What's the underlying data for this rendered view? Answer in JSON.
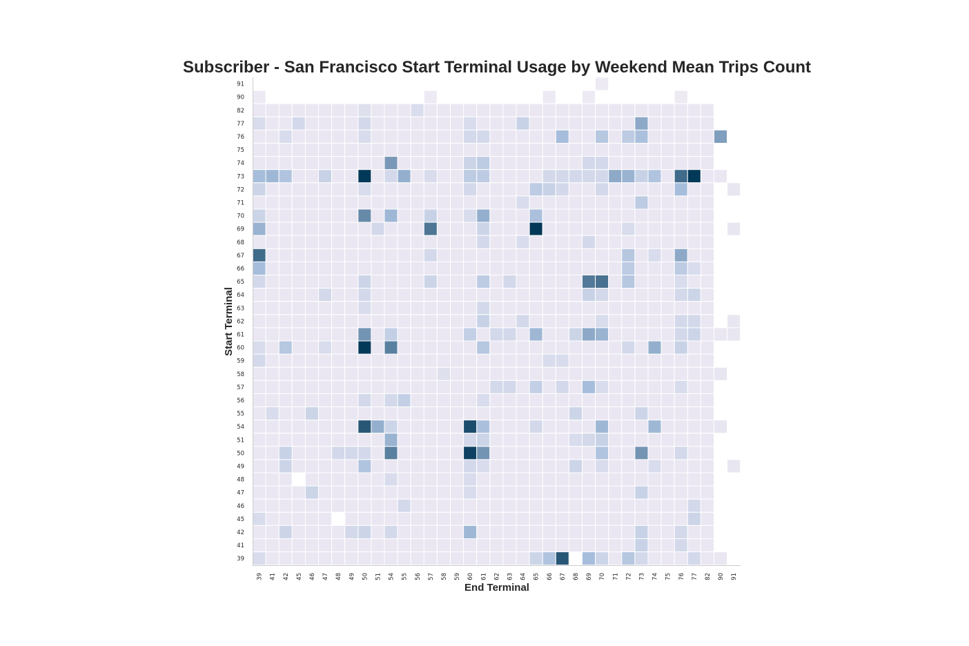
{
  "chart_data": {
    "type": "heatmap",
    "title": "Subscriber - San Francisco Start Terminal Usage by Weekend Mean Trips Count",
    "xlabel": "End Terminal",
    "ylabel": "Start Terminal",
    "x_categories": [
      "39",
      "41",
      "42",
      "45",
      "46",
      "47",
      "48",
      "49",
      "50",
      "51",
      "54",
      "55",
      "56",
      "57",
      "58",
      "59",
      "60",
      "61",
      "62",
      "63",
      "64",
      "65",
      "66",
      "67",
      "68",
      "69",
      "70",
      "71",
      "72",
      "73",
      "74",
      "75",
      "76",
      "77",
      "82",
      "90",
      "91"
    ],
    "y_categories": [
      "91",
      "90",
      "82",
      "77",
      "76",
      "75",
      "74",
      "73",
      "72",
      "71",
      "70",
      "69",
      "68",
      "67",
      "66",
      "65",
      "64",
      "63",
      "62",
      "61",
      "60",
      "59",
      "58",
      "57",
      "56",
      "55",
      "54",
      "51",
      "50",
      "49",
      "48",
      "47",
      "46",
      "45",
      "42",
      "41",
      "39"
    ],
    "colormap": {
      "low": "#f5eef6",
      "mid": "#a6bddb",
      "high": "#023858"
    },
    "value_range": [
      0,
      10
    ],
    "default_value": 0.5,
    "cells": [
      [
        "91",
        "70",
        0.3
      ],
      [
        "90",
        "39",
        0.3
      ],
      [
        "90",
        "57",
        0.3
      ],
      [
        "90",
        "66",
        0.3
      ],
      [
        "90",
        "69",
        0.3
      ],
      [
        "90",
        "76",
        0.3
      ],
      [
        "82",
        "56",
        1.2
      ],
      [
        "82",
        "50",
        1.0
      ],
      [
        "77",
        "39",
        1.3
      ],
      [
        "77",
        "45",
        1.5
      ],
      [
        "77",
        "50",
        1.5
      ],
      [
        "77",
        "60",
        1.3
      ],
      [
        "77",
        "64",
        2.0
      ],
      [
        "77",
        "73",
        4.5
      ],
      [
        "76",
        "42",
        1.3
      ],
      [
        "76",
        "50",
        1.3
      ],
      [
        "76",
        "60",
        1.5
      ],
      [
        "76",
        "61",
        1.5
      ],
      [
        "76",
        "67",
        3.5
      ],
      [
        "76",
        "70",
        2.8
      ],
      [
        "76",
        "72",
        2.5
      ],
      [
        "76",
        "73",
        3.3
      ],
      [
        "76",
        "90",
        5.0
      ],
      [
        "74",
        "54",
        5.3
      ],
      [
        "74",
        "60",
        1.8
      ],
      [
        "74",
        "61",
        2.5
      ],
      [
        "74",
        "69",
        1.5
      ],
      [
        "74",
        "70",
        1.5
      ],
      [
        "73",
        "39",
        3.5
      ],
      [
        "73",
        "41",
        3.8
      ],
      [
        "73",
        "42",
        3.0
      ],
      [
        "73",
        "47",
        2.0
      ],
      [
        "73",
        "50",
        10.0
      ],
      [
        "73",
        "55",
        4.2
      ],
      [
        "73",
        "60",
        2.5
      ],
      [
        "73",
        "61",
        2.5
      ],
      [
        "73",
        "71",
        4.5
      ],
      [
        "73",
        "72",
        4.0
      ],
      [
        "73",
        "74",
        3.0
      ],
      [
        "73",
        "76",
        7.5
      ],
      [
        "73",
        "77",
        10.0
      ],
      [
        "73",
        "73",
        2.0
      ],
      [
        "73",
        "66",
        1.5
      ],
      [
        "73",
        "67",
        1.5
      ],
      [
        "73",
        "68",
        1.5
      ],
      [
        "73",
        "69",
        1.5
      ],
      [
        "73",
        "70",
        1.5
      ],
      [
        "73",
        "57",
        1.3
      ],
      [
        "73",
        "54",
        1.5
      ],
      [
        "72",
        "39",
        1.8
      ],
      [
        "72",
        "50",
        1.3
      ],
      [
        "72",
        "60",
        1.5
      ],
      [
        "72",
        "65",
        2.5
      ],
      [
        "72",
        "66",
        2.0
      ],
      [
        "72",
        "67",
        1.5
      ],
      [
        "72",
        "70",
        1.5
      ],
      [
        "72",
        "76",
        3.5
      ],
      [
        "72",
        "91",
        0.6
      ],
      [
        "71",
        "73",
        2.5
      ],
      [
        "71",
        "64",
        1.3
      ],
      [
        "70",
        "39",
        1.8
      ],
      [
        "70",
        "50",
        6.0
      ],
      [
        "70",
        "54",
        3.8
      ],
      [
        "70",
        "57",
        2.0
      ],
      [
        "70",
        "61",
        4.2
      ],
      [
        "70",
        "65",
        3.3
      ],
      [
        "70",
        "60",
        1.3
      ],
      [
        "69",
        "39",
        4.0
      ],
      [
        "69",
        "51",
        1.5
      ],
      [
        "69",
        "57",
        7.0
      ],
      [
        "69",
        "65",
        10.0
      ],
      [
        "69",
        "61",
        1.8
      ],
      [
        "69",
        "72",
        1.3
      ],
      [
        "69",
        "91",
        0.6
      ],
      [
        "68",
        "61",
        1.5
      ],
      [
        "68",
        "64",
        1.3
      ],
      [
        "68",
        "69",
        1.5
      ],
      [
        "67",
        "39",
        7.5
      ],
      [
        "67",
        "57",
        1.5
      ],
      [
        "67",
        "72",
        2.8
      ],
      [
        "67",
        "76",
        4.5
      ],
      [
        "67",
        "74",
        1.3
      ],
      [
        "66",
        "39",
        3.5
      ],
      [
        "66",
        "72",
        2.5
      ],
      [
        "66",
        "76",
        2.5
      ],
      [
        "66",
        "77",
        1.3
      ],
      [
        "65",
        "39",
        1.5
      ],
      [
        "65",
        "50",
        1.8
      ],
      [
        "65",
        "57",
        1.8
      ],
      [
        "65",
        "61",
        2.5
      ],
      [
        "65",
        "63",
        1.5
      ],
      [
        "65",
        "69",
        6.8
      ],
      [
        "65",
        "70",
        7.2
      ],
      [
        "65",
        "72",
        2.8
      ],
      [
        "65",
        "76",
        1.3
      ],
      [
        "64",
        "47",
        1.5
      ],
      [
        "64",
        "50",
        1.5
      ],
      [
        "64",
        "69",
        2.0
      ],
      [
        "64",
        "70",
        1.5
      ],
      [
        "64",
        "77",
        1.8
      ],
      [
        "64",
        "76",
        1.5
      ],
      [
        "63",
        "61",
        1.5
      ],
      [
        "63",
        "50",
        1.3
      ],
      [
        "62",
        "61",
        2.0
      ],
      [
        "62",
        "64",
        1.5
      ],
      [
        "62",
        "70",
        1.3
      ],
      [
        "62",
        "76",
        1.5
      ],
      [
        "62",
        "77",
        1.5
      ],
      [
        "62",
        "91",
        0.6
      ],
      [
        "61",
        "50",
        5.5
      ],
      [
        "61",
        "54",
        2.2
      ],
      [
        "61",
        "60",
        2.2
      ],
      [
        "61",
        "62",
        1.5
      ],
      [
        "61",
        "63",
        1.5
      ],
      [
        "61",
        "65",
        3.8
      ],
      [
        "61",
        "68",
        1.8
      ],
      [
        "61",
        "69",
        4.5
      ],
      [
        "61",
        "70",
        4.0
      ],
      [
        "61",
        "76",
        1.5
      ],
      [
        "61",
        "77",
        1.8
      ],
      [
        "61",
        "91",
        0.6
      ],
      [
        "60",
        "42",
        2.8
      ],
      [
        "60",
        "50",
        10.0
      ],
      [
        "60",
        "54",
        6.5
      ],
      [
        "60",
        "61",
        2.8
      ],
      [
        "60",
        "74",
        4.2
      ],
      [
        "60",
        "76",
        2.0
      ],
      [
        "60",
        "72",
        1.5
      ],
      [
        "60",
        "39",
        1.3
      ],
      [
        "60",
        "47",
        1.3
      ],
      [
        "59",
        "39",
        1.5
      ],
      [
        "59",
        "66",
        1.3
      ],
      [
        "59",
        "67",
        1.3
      ],
      [
        "58",
        "58",
        1.0
      ],
      [
        "58",
        "90",
        0.6
      ],
      [
        "57",
        "62",
        1.5
      ],
      [
        "57",
        "63",
        1.5
      ],
      [
        "57",
        "65",
        2.2
      ],
      [
        "57",
        "67",
        1.5
      ],
      [
        "57",
        "69",
        3.5
      ],
      [
        "57",
        "70",
        1.3
      ],
      [
        "57",
        "76",
        1.3
      ],
      [
        "56",
        "50",
        1.5
      ],
      [
        "56",
        "54",
        1.5
      ],
      [
        "56",
        "55",
        2.2
      ],
      [
        "56",
        "61",
        1.3
      ],
      [
        "55",
        "41",
        1.3
      ],
      [
        "55",
        "46",
        1.8
      ],
      [
        "55",
        "68",
        1.8
      ],
      [
        "55",
        "73",
        1.8
      ],
      [
        "54",
        "50",
        8.5
      ],
      [
        "54",
        "51",
        4.2
      ],
      [
        "54",
        "54",
        1.8
      ],
      [
        "54",
        "60",
        9.0
      ],
      [
        "54",
        "61",
        3.3
      ],
      [
        "54",
        "65",
        1.5
      ],
      [
        "54",
        "70",
        3.8
      ],
      [
        "54",
        "74",
        3.8
      ],
      [
        "54",
        "90",
        0.6
      ],
      [
        "51",
        "54",
        4.0
      ],
      [
        "51",
        "60",
        1.5
      ],
      [
        "51",
        "61",
        1.8
      ],
      [
        "51",
        "69",
        1.5
      ],
      [
        "51",
        "70",
        2.0
      ],
      [
        "51",
        "68",
        1.3
      ],
      [
        "50",
        "42",
        2.0
      ],
      [
        "50",
        "48",
        1.5
      ],
      [
        "50",
        "49",
        1.5
      ],
      [
        "50",
        "50",
        1.5
      ],
      [
        "50",
        "54",
        6.5
      ],
      [
        "50",
        "60",
        9.5
      ],
      [
        "50",
        "61",
        5.5
      ],
      [
        "50",
        "70",
        3.0
      ],
      [
        "50",
        "73",
        5.5
      ],
      [
        "50",
        "76",
        1.5
      ],
      [
        "49",
        "42",
        1.8
      ],
      [
        "49",
        "50",
        3.0
      ],
      [
        "49",
        "60",
        1.5
      ],
      [
        "49",
        "61",
        1.3
      ],
      [
        "49",
        "68",
        1.8
      ],
      [
        "49",
        "70",
        1.3
      ],
      [
        "49",
        "74",
        1.3
      ],
      [
        "49",
        "91",
        0.6
      ],
      [
        "48",
        "45",
        0.0
      ],
      [
        "48",
        "60",
        1.3
      ],
      [
        "48",
        "54",
        1.3
      ],
      [
        "47",
        "46",
        1.8
      ],
      [
        "47",
        "73",
        2.0
      ],
      [
        "47",
        "60",
        1.3
      ],
      [
        "46",
        "55",
        1.5
      ],
      [
        "46",
        "77",
        1.5
      ],
      [
        "45",
        "39",
        1.3
      ],
      [
        "45",
        "48",
        0.0
      ],
      [
        "45",
        "77",
        1.8
      ],
      [
        "42",
        "42",
        1.8
      ],
      [
        "42",
        "49",
        1.5
      ],
      [
        "42",
        "50",
        1.8
      ],
      [
        "42",
        "54",
        1.5
      ],
      [
        "42",
        "60",
        3.8
      ],
      [
        "42",
        "73",
        2.0
      ],
      [
        "42",
        "76",
        1.5
      ],
      [
        "41",
        "73",
        2.0
      ],
      [
        "41",
        "76",
        1.5
      ],
      [
        "39",
        "39",
        1.3
      ],
      [
        "39",
        "65",
        1.8
      ],
      [
        "39",
        "66",
        3.0
      ],
      [
        "39",
        "67",
        8.5
      ],
      [
        "39",
        "68",
        0.0
      ],
      [
        "39",
        "69",
        3.5
      ],
      [
        "39",
        "70",
        1.8
      ],
      [
        "39",
        "72",
        2.8
      ],
      [
        "39",
        "73",
        1.5
      ],
      [
        "39",
        "77",
        1.5
      ]
    ],
    "blank_cells": [
      [
        "91",
        "39"
      ],
      [
        "91",
        "41"
      ],
      [
        "91",
        "42"
      ],
      [
        "91",
        "45"
      ],
      [
        "91",
        "46"
      ],
      [
        "91",
        "47"
      ],
      [
        "91",
        "48"
      ],
      [
        "91",
        "49"
      ],
      [
        "91",
        "50"
      ],
      [
        "91",
        "51"
      ],
      [
        "91",
        "54"
      ],
      [
        "91",
        "55"
      ],
      [
        "91",
        "56"
      ],
      [
        "91",
        "57"
      ],
      [
        "91",
        "58"
      ],
      [
        "91",
        "59"
      ],
      [
        "91",
        "60"
      ],
      [
        "91",
        "61"
      ],
      [
        "91",
        "62"
      ],
      [
        "91",
        "63"
      ],
      [
        "91",
        "64"
      ],
      [
        "91",
        "65"
      ],
      [
        "91",
        "66"
      ],
      [
        "91",
        "67"
      ],
      [
        "91",
        "68"
      ],
      [
        "91",
        "69"
      ],
      [
        "91",
        "71"
      ],
      [
        "91",
        "72"
      ],
      [
        "91",
        "73"
      ],
      [
        "91",
        "74"
      ],
      [
        "91",
        "75"
      ],
      [
        "91",
        "76"
      ],
      [
        "91",
        "77"
      ],
      [
        "91",
        "82"
      ],
      [
        "91",
        "90"
      ],
      [
        "91",
        "91"
      ],
      [
        "90",
        "41"
      ],
      [
        "90",
        "42"
      ],
      [
        "90",
        "45"
      ],
      [
        "90",
        "46"
      ],
      [
        "90",
        "47"
      ],
      [
        "90",
        "48"
      ],
      [
        "90",
        "49"
      ],
      [
        "90",
        "50"
      ],
      [
        "90",
        "51"
      ],
      [
        "90",
        "54"
      ],
      [
        "90",
        "55"
      ],
      [
        "90",
        "56"
      ],
      [
        "90",
        "58"
      ],
      [
        "90",
        "59"
      ],
      [
        "90",
        "60"
      ],
      [
        "90",
        "61"
      ],
      [
        "90",
        "62"
      ],
      [
        "90",
        "63"
      ],
      [
        "90",
        "64"
      ],
      [
        "90",
        "65"
      ],
      [
        "90",
        "67"
      ],
      [
        "90",
        "68"
      ],
      [
        "90",
        "70"
      ],
      [
        "90",
        "71"
      ],
      [
        "90",
        "72"
      ],
      [
        "90",
        "73"
      ],
      [
        "90",
        "74"
      ],
      [
        "90",
        "75"
      ],
      [
        "90",
        "77"
      ],
      [
        "90",
        "82"
      ],
      [
        "90",
        "90"
      ],
      [
        "90",
        "91"
      ],
      [
        "82",
        "90"
      ],
      [
        "82",
        "91"
      ],
      [
        "77",
        "90"
      ],
      [
        "77",
        "91"
      ],
      [
        "76",
        "91"
      ],
      [
        "75",
        "90"
      ],
      [
        "75",
        "91"
      ],
      [
        "74",
        "90"
      ],
      [
        "74",
        "91"
      ],
      [
        "73",
        "91"
      ],
      [
        "72",
        "90"
      ],
      [
        "71",
        "90"
      ],
      [
        "71",
        "91"
      ],
      [
        "70",
        "90"
      ],
      [
        "70",
        "91"
      ],
      [
        "69",
        "90"
      ],
      [
        "68",
        "90"
      ],
      [
        "68",
        "91"
      ],
      [
        "67",
        "90"
      ],
      [
        "67",
        "91"
      ],
      [
        "66",
        "90"
      ],
      [
        "66",
        "91"
      ],
      [
        "65",
        "90"
      ],
      [
        "65",
        "91"
      ],
      [
        "64",
        "90"
      ],
      [
        "64",
        "91"
      ],
      [
        "63",
        "90"
      ],
      [
        "63",
        "91"
      ],
      [
        "62",
        "90"
      ],
      [
        "60",
        "90"
      ],
      [
        "60",
        "91"
      ],
      [
        "59",
        "90"
      ],
      [
        "59",
        "91"
      ],
      [
        "58",
        "91"
      ],
      [
        "57",
        "90"
      ],
      [
        "57",
        "91"
      ],
      [
        "56",
        "90"
      ],
      [
        "56",
        "91"
      ],
      [
        "55",
        "90"
      ],
      [
        "55",
        "91"
      ],
      [
        "54",
        "91"
      ],
      [
        "51",
        "90"
      ],
      [
        "51",
        "91"
      ],
      [
        "50",
        "90"
      ],
      [
        "50",
        "91"
      ],
      [
        "49",
        "90"
      ],
      [
        "48",
        "90"
      ],
      [
        "48",
        "91"
      ],
      [
        "47",
        "90"
      ],
      [
        "47",
        "91"
      ],
      [
        "46",
        "90"
      ],
      [
        "46",
        "91"
      ],
      [
        "45",
        "90"
      ],
      [
        "45",
        "91"
      ],
      [
        "42",
        "90"
      ],
      [
        "42",
        "91"
      ],
      [
        "41",
        "90"
      ],
      [
        "41",
        "91"
      ],
      [
        "39",
        "91"
      ]
    ],
    "grid": false,
    "legend": "none"
  }
}
